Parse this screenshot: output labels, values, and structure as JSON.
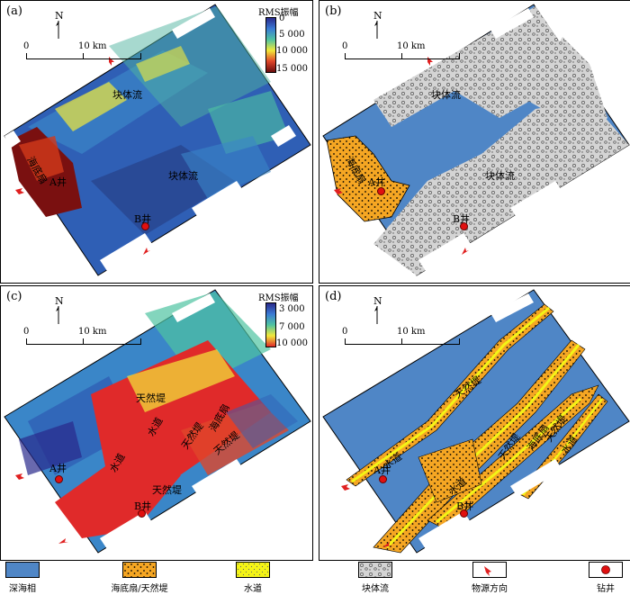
{
  "panels": {
    "a": {
      "label": "(a)",
      "north": "N",
      "scale_0": "0",
      "scale_10": "10 km",
      "colorbar_title": "RMS振幅",
      "colorbar_ticks": [
        "0",
        "5 000",
        "10 000",
        "15 000"
      ],
      "labels": {
        "mass_flow_top": "块体流",
        "mass_flow_center": "块体流",
        "fan": "海底扇",
        "well_a": "A井",
        "well_b": "B井"
      }
    },
    "b": {
      "label": "(b)",
      "north": "N",
      "scale_0": "0",
      "scale_10": "10 km",
      "labels": {
        "mass_flow_top": "块体流",
        "mass_flow_center": "块体流",
        "fan": "海底扇",
        "well_a": "A井",
        "well_b": "B井"
      }
    },
    "c": {
      "label": "(c)",
      "north": "N",
      "scale_0": "0",
      "scale_10": "10 km",
      "colorbar_title": "RMS振幅",
      "colorbar_ticks": [
        "3 000",
        "7 000",
        "10 000"
      ],
      "labels": {
        "levee1": "天然堤",
        "channel1": "水道",
        "levee2": "天然堤",
        "fan1": "海底扇",
        "channel2": "水道",
        "levee3": "天然堤",
        "levee4": "天然堤",
        "well_a": "A井",
        "well_b": "B井"
      }
    },
    "d": {
      "label": "(d)",
      "north": "N",
      "scale_0": "0",
      "scale_10": "10 km",
      "labels": {
        "levee1": "天然堤",
        "channel1": "水道",
        "channel2": "水道",
        "levee2": "天然堤",
        "fan1": "海底扇",
        "levee3": "天然堤",
        "channel3": "水道",
        "well_a": "A井",
        "well_b": "B井"
      }
    }
  },
  "legend": [
    {
      "label": "深海相",
      "pattern": "deep",
      "color": "#4f86c6"
    },
    {
      "label": "海底扇/天然堤",
      "pattern": "fan",
      "color": "#f5a623"
    },
    {
      "label": "水道",
      "pattern": "channel",
      "color": "#f4f416"
    },
    {
      "label": "块体流",
      "pattern": "mass",
      "color": "#c8c8c8"
    },
    {
      "label": "物源方向",
      "pattern": "arrow",
      "color": "#e02020"
    },
    {
      "label": "钻井",
      "pattern": "well",
      "color": "#e01010"
    }
  ],
  "colors": {
    "deep_sea": "#4f86c6",
    "fan": "#f5a623",
    "channel": "#f4f416",
    "mass_flow": "#c8c8c8",
    "arrow": "#e02020"
  }
}
